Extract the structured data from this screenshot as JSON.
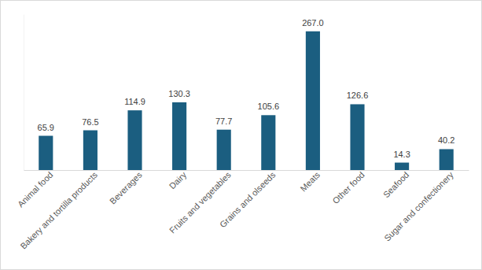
{
  "chart_data": {
    "type": "bar",
    "categories": [
      "Animal food",
      "Bakery and tortilla products",
      "Beverages",
      "Dairy",
      "Fruits and vegetables",
      "Grains and olseeds",
      "Meats",
      "Other food",
      "Seafood",
      "Sugar and confectionery"
    ],
    "values": [
      65.9,
      76.5,
      114.9,
      130.3,
      77.7,
      105.6,
      267.0,
      126.6,
      14.3,
      40.2
    ],
    "value_labels": [
      "65.9",
      "76.5",
      "114.9",
      "130.3",
      "77.7",
      "105.6",
      "267.0",
      "126.6",
      "14.3",
      "40.2"
    ],
    "color": "#1b5e80",
    "ylim": [
      0,
      300
    ],
    "grid": false,
    "data_labels": true,
    "tick_labels": "x"
  }
}
